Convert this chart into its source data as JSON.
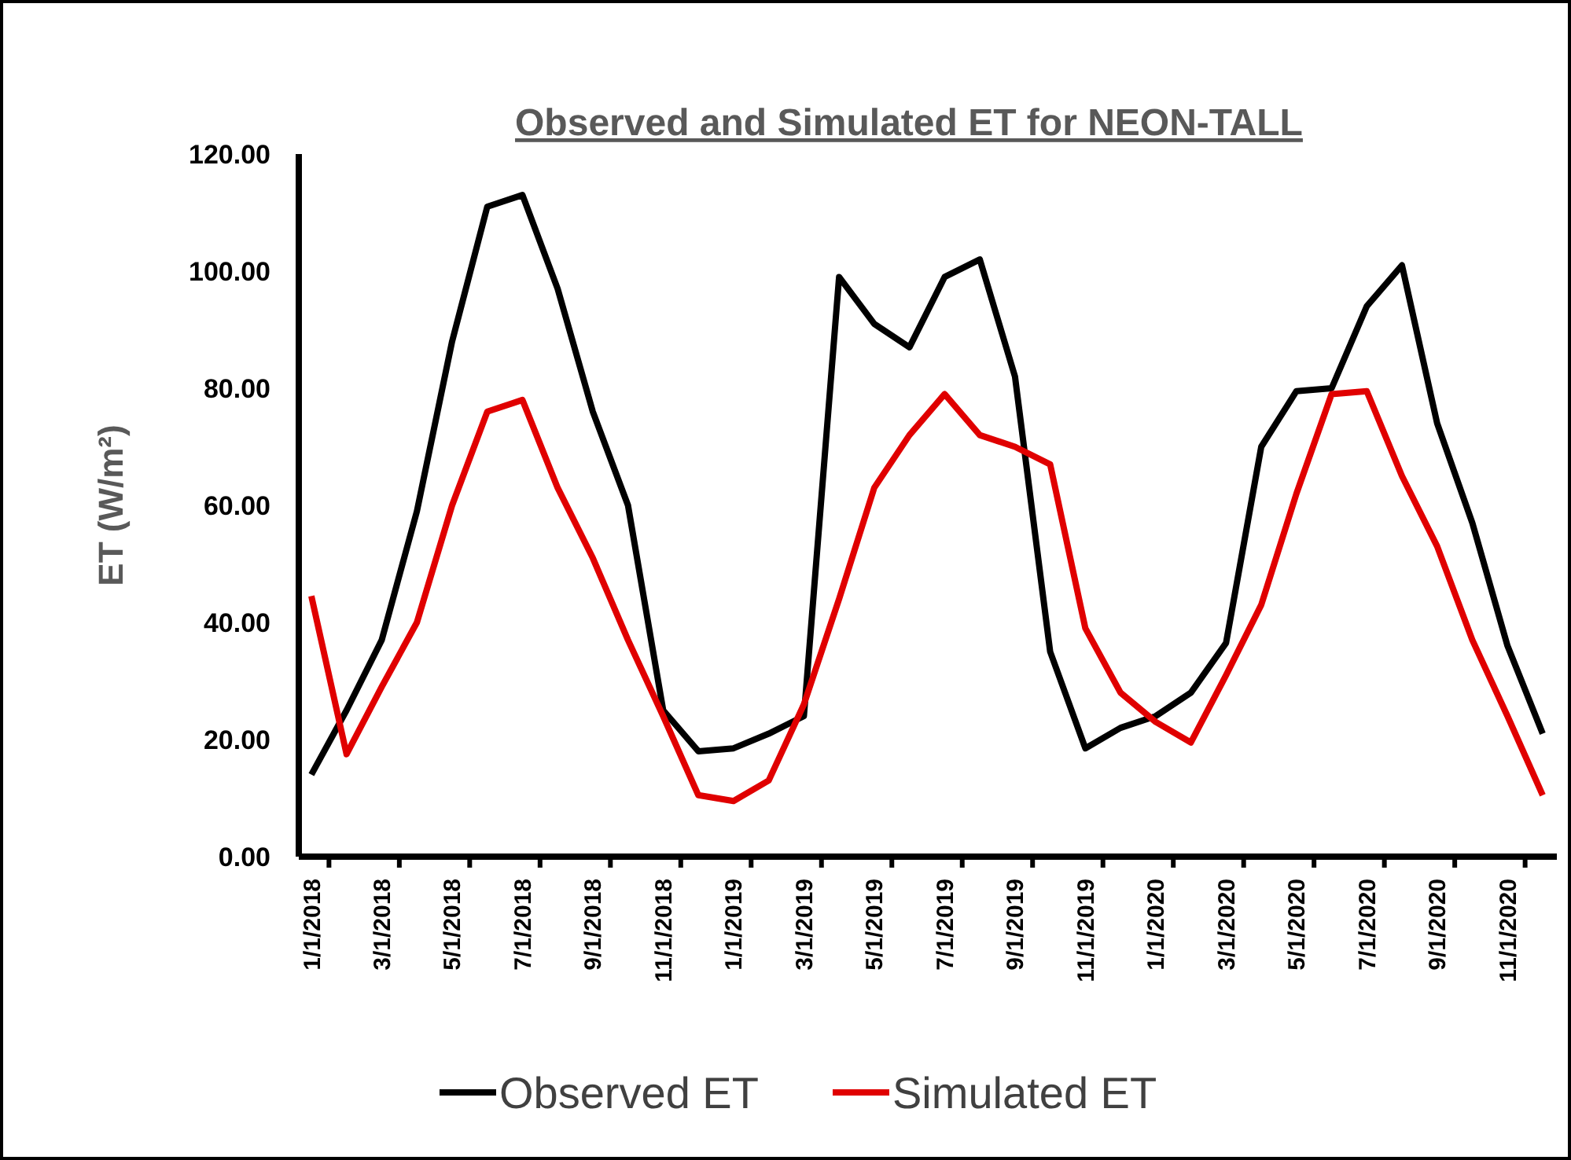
{
  "chart_data": {
    "type": "line",
    "title": "Observed and Simulated ET for NEON-TALL",
    "ylabel": "ET (W/m²)",
    "categories": [
      "1/1/2018",
      null,
      "3/1/2018",
      null,
      "5/1/2018",
      null,
      "7/1/2018",
      null,
      "9/1/2018",
      null,
      "11/1/2018",
      null,
      "1/1/2019",
      null,
      "3/1/2019",
      null,
      "5/1/2019",
      null,
      "7/1/2019",
      null,
      "9/1/2019",
      null,
      "11/1/2019",
      null,
      "1/1/2020",
      null,
      "3/1/2020",
      null,
      "5/1/2020",
      null,
      "7/1/2020",
      null,
      "9/1/2020",
      null,
      "11/1/2020",
      null
    ],
    "series": [
      {
        "name": "Observed ET",
        "color": "#000000",
        "values": [
          14,
          25,
          37,
          59,
          88,
          111,
          113,
          97,
          76,
          60,
          25,
          18,
          18.5,
          21,
          24,
          99,
          91,
          87,
          99,
          102,
          82,
          35,
          18.5,
          22,
          24,
          28,
          36.5,
          70,
          79.5,
          80,
          94,
          101,
          74,
          57,
          36,
          21
        ]
      },
      {
        "name": "Simulated ET",
        "color": "#e00000",
        "values": [
          44.5,
          17.5,
          29,
          40,
          60,
          76,
          78,
          63,
          51,
          37,
          24,
          10.5,
          9.5,
          13,
          26,
          44,
          63,
          72,
          79,
          72,
          70,
          67,
          39,
          28,
          23,
          19.5,
          31,
          43,
          62,
          79,
          79.5,
          65,
          53,
          37,
          24,
          10.5
        ]
      }
    ],
    "ylim": [
      0,
      120
    ],
    "yticks": [
      {
        "value": 0,
        "label": "0.00"
      },
      {
        "value": 20,
        "label": "20.00"
      },
      {
        "value": 40,
        "label": "40.00"
      },
      {
        "value": 60,
        "label": "60.00"
      },
      {
        "value": 80,
        "label": "80.00"
      },
      {
        "value": 100,
        "label": "100.00"
      },
      {
        "value": 120,
        "label": "120.00"
      }
    ],
    "legend": "bottom",
    "grid": false,
    "marker": "none",
    "line_style": "solid"
  }
}
